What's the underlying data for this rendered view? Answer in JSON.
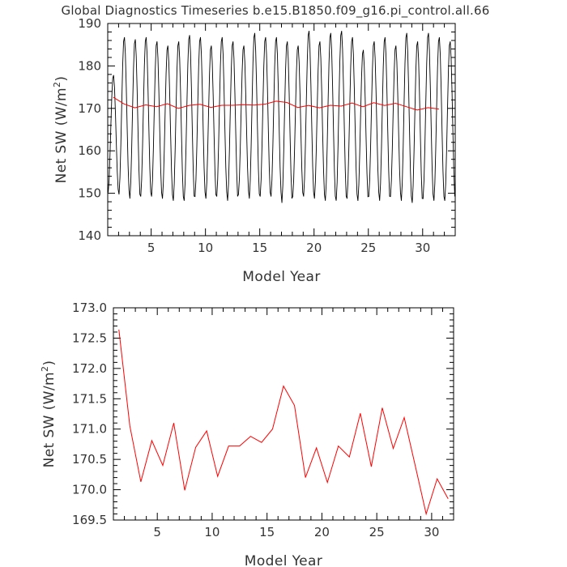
{
  "title": "Global Diagnostics Timeseries b.e15.B1850.f09_g16.pi_control.all.66",
  "chart_data": [
    {
      "type": "line",
      "xlabel": "Model Year",
      "ylabel": "Net SW (W/m²)",
      "ylabel_main": "Net SW (W/m",
      "ylabel_sup": "2",
      "ylabel_close": ")",
      "xlim": [
        1,
        33
      ],
      "ylim": [
        140,
        190
      ],
      "xticks": [
        5,
        10,
        15,
        20,
        25,
        30
      ],
      "yticks": [
        140,
        150,
        160,
        170,
        180,
        190
      ],
      "grid": false,
      "monthly_series": {
        "color": "#000000",
        "x_start": 1.0417,
        "x_step": 0.08333,
        "monthly_peaks": [
          178.0,
          187.0,
          186.5,
          187.0,
          186.0,
          185.0,
          186.0,
          187.5,
          187.0,
          185.0,
          187.0,
          186.0,
          185.0,
          188.0,
          187.0,
          187.0,
          186.0,
          185.0,
          188.5,
          186.0,
          188.0,
          188.5,
          187.0,
          184.0,
          186.0,
          187.0,
          185.0,
          188.0,
          186.0,
          188.0,
          187.0,
          186.0
        ],
        "monthly_troughs": [
          150.0,
          149.5,
          148.5,
          149.0,
          149.0,
          148.5,
          148.0,
          148.0,
          149.0,
          148.5,
          149.0,
          148.0,
          149.5,
          148.5,
          149.0,
          149.0,
          147.5,
          149.0,
          149.0,
          148.5,
          148.0,
          148.0,
          148.5,
          148.0,
          149.0,
          148.0,
          149.0,
          148.0,
          147.5,
          148.5,
          148.0,
          148.0
        ]
      },
      "annual_series": {
        "color": "#ff0000",
        "x": [
          1.5,
          2.5,
          3.5,
          4.5,
          5.5,
          6.5,
          7.5,
          8.5,
          9.5,
          10.5,
          11.5,
          12.5,
          13.5,
          14.5,
          15.5,
          16.5,
          17.5,
          18.5,
          19.5,
          20.5,
          21.5,
          22.5,
          23.5,
          24.5,
          25.5,
          26.5,
          27.5,
          28.5,
          29.5,
          30.5,
          31.5
        ],
        "y": [
          172.64,
          171.05,
          170.13,
          170.81,
          170.4,
          171.1,
          169.99,
          170.7,
          170.97,
          170.22,
          170.72,
          170.72,
          170.88,
          170.78,
          171.0,
          171.71,
          171.39,
          170.2,
          170.69,
          170.12,
          170.72,
          170.54,
          171.26,
          170.38,
          171.35,
          170.68,
          171.19,
          170.4,
          169.6,
          170.18,
          169.85
        ]
      }
    },
    {
      "type": "line",
      "xlabel": "Model Year",
      "ylabel": "Net SW (W/m²)",
      "ylabel_main": "Net SW (W/m",
      "ylabel_sup": "2",
      "ylabel_close": ")",
      "xlim": [
        1,
        32
      ],
      "ylim": [
        169.5,
        173.0
      ],
      "xticks": [
        5,
        10,
        15,
        20,
        25,
        30
      ],
      "yticks": [
        169.5,
        170.0,
        170.5,
        171.0,
        171.5,
        172.0,
        172.5,
        173.0
      ],
      "ytick_labels": [
        "169.5",
        "170.0",
        "170.5",
        "171.0",
        "171.5",
        "172.0",
        "172.5",
        "173.0"
      ],
      "grid": false,
      "annual_series": {
        "color": "#ff0000",
        "x": [
          1.5,
          2.5,
          3.5,
          4.5,
          5.5,
          6.5,
          7.5,
          8.5,
          9.5,
          10.5,
          11.5,
          12.5,
          13.5,
          14.5,
          15.5,
          16.5,
          17.5,
          18.5,
          19.5,
          20.5,
          21.5,
          22.5,
          23.5,
          24.5,
          25.5,
          26.5,
          27.5,
          28.5,
          29.5,
          30.5,
          31.5
        ],
        "y": [
          172.64,
          171.05,
          170.13,
          170.81,
          170.4,
          171.1,
          169.99,
          170.7,
          170.97,
          170.22,
          170.72,
          170.72,
          170.88,
          170.78,
          171.0,
          171.71,
          171.39,
          170.2,
          170.69,
          170.12,
          170.72,
          170.54,
          171.26,
          170.38,
          171.35,
          170.68,
          171.19,
          170.4,
          169.6,
          170.18,
          169.85
        ]
      }
    }
  ]
}
